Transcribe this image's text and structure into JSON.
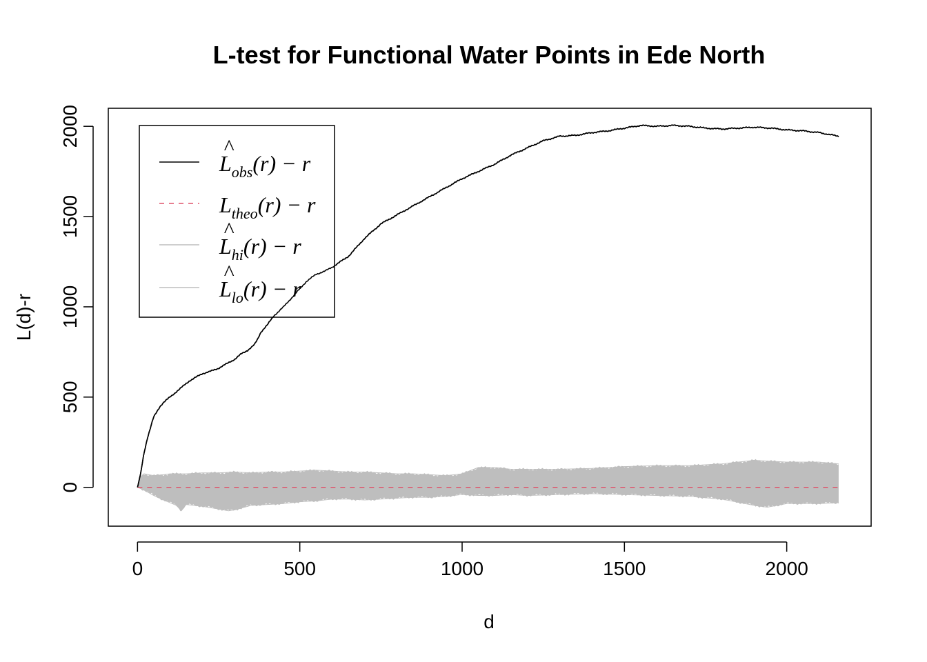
{
  "chart_data": {
    "type": "line",
    "title": "L-test for Functional Water Points in Ede North",
    "xlabel": "d",
    "ylabel": "L(d)-r",
    "xlim": [
      -90,
      2260
    ],
    "ylim": [
      -215,
      2100
    ],
    "xticks": [
      0,
      500,
      1000,
      1500,
      2000
    ],
    "yticks": [
      0,
      500,
      1000,
      1500,
      2000
    ],
    "grid": false,
    "legend_position": "top-left",
    "series": [
      {
        "name": "L̂obs(r) − r",
        "legend": {
          "main": "L",
          "hat": true,
          "sub": "obs",
          "rest": "(r) − r"
        },
        "color": "#000000",
        "style": "solid",
        "x": [
          0,
          10,
          20,
          30,
          40,
          50,
          60,
          70,
          80,
          100,
          120,
          140,
          160,
          180,
          200,
          220,
          250,
          280,
          300,
          320,
          340,
          360,
          370,
          380,
          400,
          420,
          450,
          480,
          500,
          520,
          550,
          580,
          600,
          650,
          700,
          750,
          800,
          850,
          900,
          950,
          1000,
          1050,
          1100,
          1150,
          1200,
          1250,
          1300,
          1350,
          1400,
          1450,
          1500,
          1550,
          1600,
          1650,
          1700,
          1750,
          1800,
          1850,
          1900,
          1950,
          2000,
          2050,
          2100,
          2160
        ],
        "y": [
          0,
          80,
          190,
          270,
          330,
          390,
          420,
          450,
          470,
          500,
          530,
          560,
          590,
          610,
          630,
          640,
          660,
          690,
          710,
          740,
          760,
          790,
          820,
          860,
          900,
          950,
          1000,
          1060,
          1100,
          1140,
          1180,
          1200,
          1220,
          1280,
          1380,
          1460,
          1510,
          1560,
          1610,
          1660,
          1710,
          1750,
          1790,
          1840,
          1880,
          1920,
          1945,
          1950,
          1965,
          1975,
          1990,
          2005,
          2000,
          2005,
          2000,
          1990,
          1985,
          1990,
          1995,
          1990,
          1980,
          1975,
          1965,
          1945
        ]
      },
      {
        "name": "Ltheo(r) − r",
        "legend": {
          "main": "L",
          "hat": false,
          "sub": "theo",
          "rest": "(r) − r"
        },
        "color": "#DF536B",
        "style": "dashed",
        "x": [
          0,
          2160
        ],
        "y": [
          0,
          0
        ]
      },
      {
        "name": "L̂hi(r) − r",
        "legend": {
          "main": "L",
          "hat": true,
          "sub": "hi",
          "rest": "(r) − r"
        },
        "color": "#BEBEBE",
        "style": "solid",
        "x": [
          0,
          10,
          20,
          50,
          80,
          100,
          150,
          200,
          250,
          300,
          350,
          400,
          450,
          500,
          550,
          600,
          650,
          700,
          750,
          800,
          850,
          900,
          950,
          1000,
          1050,
          1100,
          1150,
          1200,
          1300,
          1400,
          1500,
          1600,
          1700,
          1800,
          1900,
          2000,
          2100,
          2160
        ],
        "y": [
          0,
          60,
          75,
          65,
          70,
          75,
          75,
          80,
          80,
          85,
          80,
          85,
          85,
          90,
          95,
          90,
          85,
          85,
          80,
          75,
          75,
          70,
          65,
          75,
          110,
          110,
          100,
          100,
          100,
          105,
          115,
          120,
          120,
          130,
          150,
          140,
          140,
          130
        ]
      },
      {
        "name": "L̂lo(r) − r",
        "legend": {
          "main": "L",
          "hat": true,
          "sub": "lo",
          "rest": "(r) − r"
        },
        "color": "#BEBEBE",
        "style": "solid",
        "x": [
          0,
          20,
          50,
          80,
          100,
          120,
          135,
          150,
          200,
          250,
          280,
          300,
          320,
          350,
          400,
          450,
          500,
          550,
          600,
          650,
          700,
          750,
          800,
          850,
          900,
          950,
          1000,
          1050,
          1100,
          1150,
          1200,
          1300,
          1400,
          1500,
          1600,
          1700,
          1800,
          1900,
          1940,
          2000,
          2100,
          2160
        ],
        "y": [
          0,
          -15,
          -45,
          -70,
          -85,
          -100,
          -130,
          -95,
          -105,
          -120,
          -130,
          -125,
          -115,
          -100,
          -95,
          -90,
          -80,
          -75,
          -65,
          -65,
          -70,
          -65,
          -60,
          -55,
          -55,
          -50,
          -40,
          -45,
          -45,
          -40,
          -45,
          -40,
          -35,
          -40,
          -45,
          -50,
          -65,
          -100,
          -110,
          -90,
          -90,
          -85
        ]
      }
    ]
  }
}
